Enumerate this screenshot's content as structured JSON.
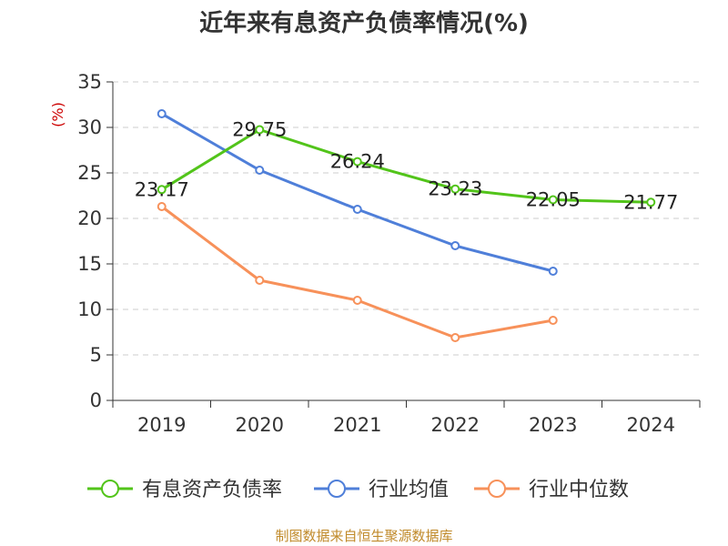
{
  "chart_data": {
    "type": "line",
    "title": "近年来有息资产负债率情况(%)",
    "ylabel": "(%)",
    "xlabel": "",
    "categories": [
      "2019",
      "2020",
      "2021",
      "2022",
      "2023",
      "2024"
    ],
    "ylim": [
      0,
      35
    ],
    "yticks": [
      0,
      5,
      10,
      15,
      20,
      25,
      30,
      35
    ],
    "grid": true,
    "legend_position": "bottom",
    "series": [
      {
        "name": "有息资产负债率",
        "color": "#52c41a",
        "values": [
          23.17,
          29.75,
          26.24,
          23.23,
          22.05,
          21.77
        ],
        "labels": [
          "23.17",
          "29.75",
          "26.24",
          "23.23",
          "22.05",
          "21.77"
        ]
      },
      {
        "name": "行业均值",
        "color": "#4f7fd9",
        "values": [
          31.5,
          25.3,
          21.0,
          17.0,
          14.2,
          null
        ]
      },
      {
        "name": "行业中位数",
        "color": "#f7915a",
        "values": [
          21.3,
          13.2,
          11.0,
          6.9,
          8.8,
          null
        ]
      }
    ]
  },
  "source": "制图数据来自恒生聚源数据库"
}
